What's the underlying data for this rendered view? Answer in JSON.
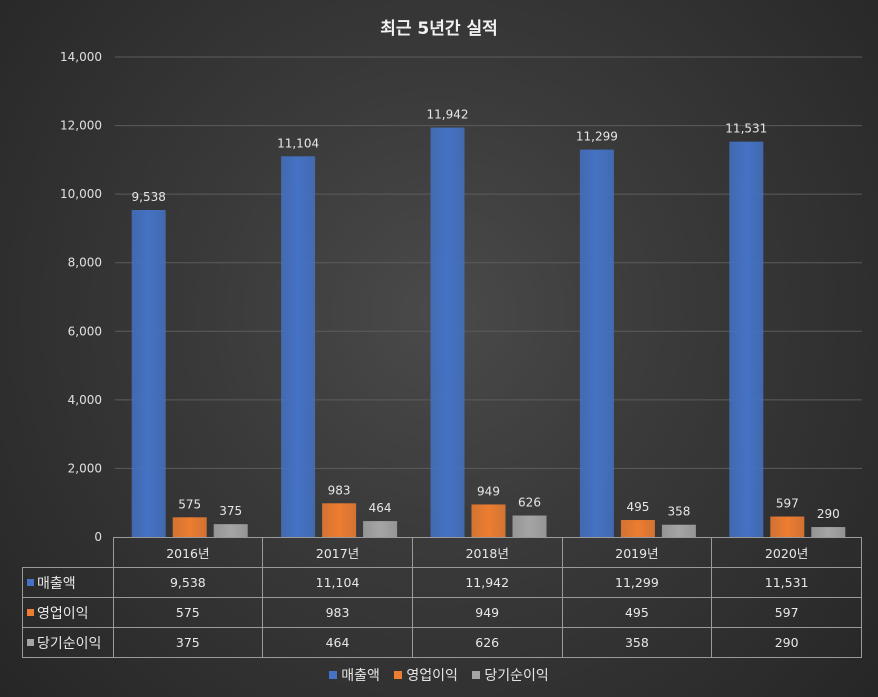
{
  "chart_data": {
    "type": "bar",
    "title": "최근 5년간 실적",
    "categories": [
      "2016년",
      "2017년",
      "2018년",
      "2019년",
      "2020년"
    ],
    "ylim": [
      0,
      14000
    ],
    "yticks": [
      0,
      2000,
      4000,
      6000,
      8000,
      10000,
      12000,
      14000
    ],
    "ytick_labels": [
      "0",
      "2,000",
      "4,000",
      "6,000",
      "8,000",
      "10,000",
      "12,000",
      "14,000"
    ],
    "series": [
      {
        "name": "매출액",
        "color": "#4472C4",
        "values": [
          9538,
          11104,
          11942,
          11299,
          11531
        ],
        "labels": [
          "9,538",
          "11,104",
          "11,942",
          "11,299",
          "11,531"
        ]
      },
      {
        "name": "영업이익",
        "color": "#ED7D31",
        "values": [
          575,
          983,
          949,
          495,
          597
        ],
        "labels": [
          "575",
          "983",
          "949",
          "495",
          "597"
        ]
      },
      {
        "name": "당기순이익",
        "color": "#A5A5A5",
        "values": [
          375,
          464,
          626,
          358,
          290
        ],
        "labels": [
          "375",
          "464",
          "626",
          "358",
          "290"
        ]
      }
    ],
    "grid": true,
    "legend": "bottom"
  }
}
